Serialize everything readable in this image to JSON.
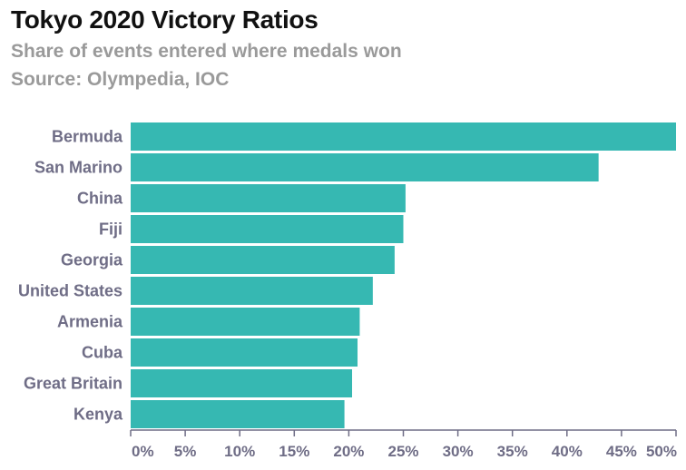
{
  "chart_data": {
    "type": "bar",
    "orientation": "horizontal",
    "title": "Tokyo 2020 Victory Ratios",
    "subtitle": "Share of events entered where medals won",
    "source": "Source: Olympedia, IOC",
    "categories": [
      "Bermuda",
      "San Marino",
      "China",
      "Fiji",
      "Georgia",
      "United States",
      "Armenia",
      "Cuba",
      "Great Britain",
      "Kenya"
    ],
    "values": [
      50,
      42.9,
      25.2,
      25,
      24.2,
      22.2,
      21,
      20.8,
      20.3,
      19.6
    ],
    "xlim": [
      0,
      50
    ],
    "xticks": [
      "0%",
      "5%",
      "10%",
      "15%",
      "20%",
      "25%",
      "30%",
      "35%",
      "40%",
      "45%",
      "50%"
    ],
    "bar_color": "#36b8b2",
    "axis_color": "#6f6d86",
    "grid": false
  }
}
